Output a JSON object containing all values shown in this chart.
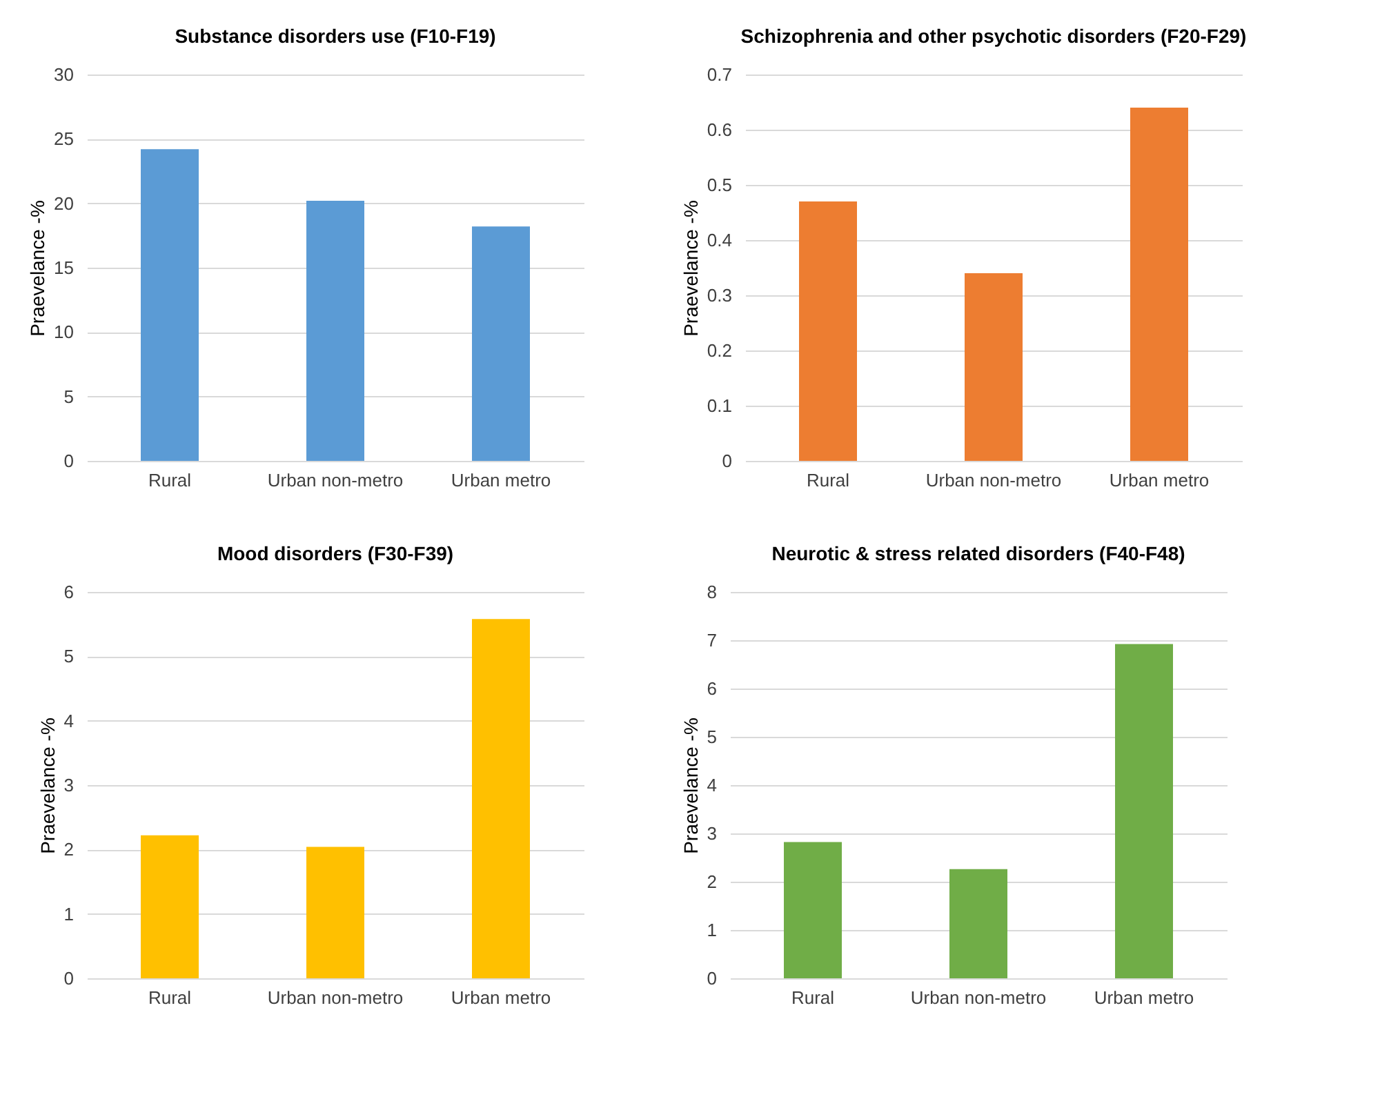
{
  "chart_data": [
    {
      "type": "bar",
      "title": "Substance disorders use (F10-F19)",
      "ylabel": "Praevelance -%",
      "categories": [
        "Rural",
        "Urban non-metro",
        "Urban metro"
      ],
      "values": [
        24.2,
        20.2,
        18.2
      ],
      "color": "#5b9bd5",
      "ylim": [
        0,
        30
      ],
      "yticks": [
        0,
        5,
        10,
        15,
        20,
        25,
        30
      ],
      "grid": "y"
    },
    {
      "type": "bar",
      "title": "Schizophrenia and other psychotic disorders (F20-F29)",
      "ylabel": "Praevelance -%",
      "categories": [
        "Rural",
        "Urban non-metro",
        "Urban metro"
      ],
      "values": [
        0.47,
        0.34,
        0.64
      ],
      "color": "#ed7d31",
      "ylim": [
        0,
        0.7
      ],
      "yticks": [
        0,
        0.1,
        0.2,
        0.3,
        0.4,
        0.5,
        0.6,
        0.7
      ],
      "grid": "y"
    },
    {
      "type": "bar",
      "title": "Mood disorders (F30-F39)",
      "ylabel": "Praevelance -%",
      "categories": [
        "Rural",
        "Urban non-metro",
        "Urban metro"
      ],
      "values": [
        2.22,
        2.04,
        5.58
      ],
      "color": "#ffc000",
      "ylim": [
        0,
        6
      ],
      "yticks": [
        0,
        1,
        2,
        3,
        4,
        5,
        6
      ],
      "grid": "y"
    },
    {
      "type": "bar",
      "title": "Neurotic & stress related disorders (F40-F48)",
      "ylabel": "Praevelance -%",
      "categories": [
        "Rural",
        "Urban non-metro",
        "Urban metro"
      ],
      "values": [
        2.82,
        2.26,
        6.92
      ],
      "color": "#70ad47",
      "ylim": [
        0,
        8
      ],
      "yticks": [
        0,
        1,
        2,
        3,
        4,
        5,
        6,
        7,
        8
      ],
      "grid": "y"
    }
  ]
}
